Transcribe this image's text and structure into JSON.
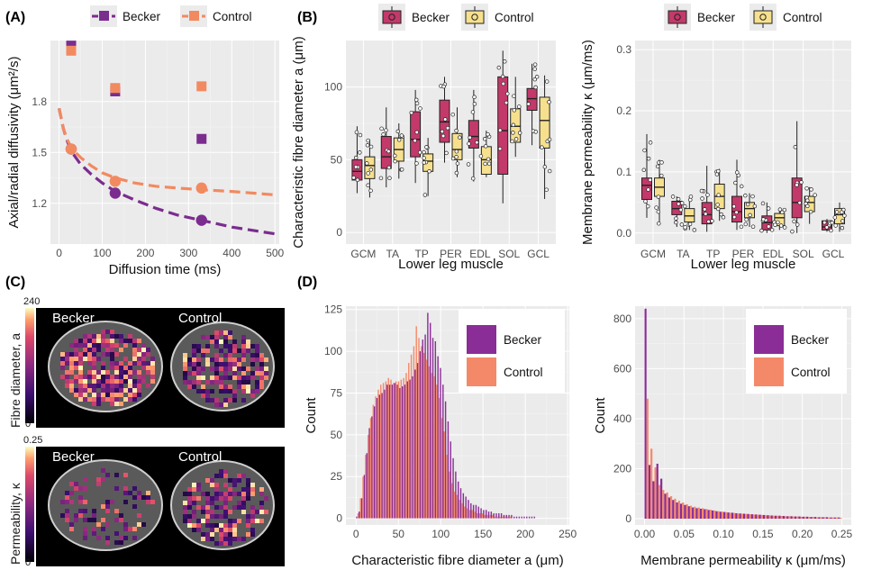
{
  "panel_labels": {
    "a": "(A)",
    "b": "(B)",
    "c": "(C)",
    "d": "(D)"
  },
  "colors": {
    "becker_a": "#7b2c8f",
    "control_a": "#f28a60",
    "becker_box": "#c3396a",
    "control_box": "#f6e08e",
    "becker_hist": "#8a2d96",
    "control_hist": "#f4896a",
    "panel_bg": "#ebebeb"
  },
  "panel_c": {
    "becker_label": "Becker",
    "control_label": "Control",
    "top_colorbar_label": "Fibre diameter, a",
    "top_colorbar_max": "240",
    "top_colorbar_min": "0",
    "bottom_colorbar_label": "Permeability, κ",
    "bottom_colorbar_max": "0.25",
    "bottom_colorbar_min": "0"
  },
  "chart_data": [
    {
      "id": "A",
      "type": "scatter",
      "xlabel": "Diffusion time (ms)",
      "ylabel": "Axial/radial diffusivity (μm²/s)",
      "xlim": [
        -20,
        510
      ],
      "ylim": [
        0.96,
        2.16
      ],
      "xticks": [
        0,
        100,
        200,
        300,
        400,
        500
      ],
      "yticks": [
        1.2,
        1.5,
        1.8
      ],
      "legend": [
        "Becker",
        "Control"
      ],
      "legend_position": "top",
      "series": [
        {
          "name": "Becker",
          "marker": "square",
          "x": [
            28,
            130,
            330
          ],
          "y": [
            2.13,
            1.86,
            1.58
          ]
        },
        {
          "name": "Control",
          "marker": "square",
          "x": [
            28,
            130,
            330
          ],
          "y": [
            2.1,
            1.88,
            1.89
          ]
        },
        {
          "name": "Becker",
          "marker": "circle",
          "x": [
            28,
            130,
            330
          ],
          "y": [
            1.52,
            1.26,
            1.1
          ]
        },
        {
          "name": "Control",
          "marker": "circle",
          "x": [
            28,
            130,
            330
          ],
          "y": [
            1.52,
            1.33,
            1.29
          ]
        }
      ],
      "fits": [
        {
          "name": "Becker",
          "x": [
            0,
            10,
            20,
            30,
            50,
            75,
            100,
            130,
            175,
            225,
            275,
            330,
            400,
            500
          ],
          "y": [
            1.76,
            1.64,
            1.56,
            1.5,
            1.43,
            1.37,
            1.32,
            1.27,
            1.22,
            1.17,
            1.13,
            1.1,
            1.06,
            1.02
          ]
        },
        {
          "name": "Control",
          "x": [
            0,
            10,
            20,
            30,
            50,
            75,
            100,
            130,
            175,
            225,
            275,
            330,
            400,
            500
          ],
          "y": [
            1.76,
            1.64,
            1.57,
            1.52,
            1.47,
            1.42,
            1.38,
            1.35,
            1.32,
            1.3,
            1.29,
            1.28,
            1.27,
            1.25
          ]
        }
      ]
    },
    {
      "id": "B-left",
      "type": "box",
      "xlabel": "Lower leg muscle",
      "ylabel": "Characteristic fibre diameter a (μm)",
      "ylim": [
        -8,
        132
      ],
      "yticks": [
        0,
        50,
        100
      ],
      "legend": [
        "Becker",
        "Control"
      ],
      "legend_position": "top",
      "categories": [
        "GCM",
        "TA",
        "TP",
        "PER",
        "EDL",
        "SOL",
        "GCL"
      ],
      "series": [
        {
          "name": "Becker",
          "boxes": [
            [
              27,
              36,
              42,
              50,
              73
            ],
            [
              31,
              44,
              52,
              66,
              86
            ],
            [
              34,
              52,
              64,
              83,
              98
            ],
            [
              48,
              62,
              76,
              91,
              107
            ],
            [
              35,
              58,
              66,
              77,
              98
            ],
            [
              20,
              40,
              70,
              107,
              125
            ],
            [
              60,
              84,
              92,
              99,
              116
            ]
          ]
        },
        {
          "name": "Control",
          "boxes": [
            [
              24,
              37,
              46,
              52,
              64
            ],
            [
              37,
              49,
              57,
              65,
              75
            ],
            [
              25,
              42,
              49,
              54,
              65
            ],
            [
              38,
              50,
              57,
              68,
              86
            ],
            [
              38,
              40,
              50,
              59,
              70
            ],
            [
              52,
              62,
              73,
              85,
              107
            ],
            [
              23,
              58,
              77,
              93,
              108
            ]
          ]
        }
      ]
    },
    {
      "id": "B-right",
      "type": "box",
      "xlabel": "Lower leg muscle",
      "ylabel": "Membrane permeability κ (μm/ms)",
      "ylim": [
        -0.018,
        0.315
      ],
      "yticks": [
        0.0,
        0.1,
        0.2,
        0.3
      ],
      "legend": [
        "Becker",
        "Control"
      ],
      "legend_position": "top",
      "categories": [
        "GCM",
        "TA",
        "TP",
        "PER",
        "EDL",
        "SOL",
        "GCL"
      ],
      "series": [
        {
          "name": "Becker",
          "boxes": [
            [
              0.025,
              0.055,
              0.078,
              0.09,
              0.162
            ],
            [
              0.01,
              0.03,
              0.04,
              0.052,
              0.06
            ],
            [
              0.002,
              0.015,
              0.03,
              0.05,
              0.11
            ],
            [
              0.005,
              0.018,
              0.035,
              0.06,
              0.12
            ],
            [
              0.0,
              0.005,
              0.017,
              0.028,
              0.05
            ],
            [
              0.0,
              0.025,
              0.05,
              0.09,
              0.183
            ],
            [
              0.002,
              0.005,
              0.01,
              0.02,
              0.023
            ]
          ]
        },
        {
          "name": "Control",
          "boxes": [
            [
              0.015,
              0.06,
              0.075,
              0.09,
              0.12
            ],
            [
              0.005,
              0.018,
              0.028,
              0.04,
              0.06
            ],
            [
              0.02,
              0.04,
              0.06,
              0.08,
              0.105
            ],
            [
              0.01,
              0.025,
              0.04,
              0.05,
              0.065
            ],
            [
              0.005,
              0.012,
              0.025,
              0.032,
              0.04
            ],
            [
              0.015,
              0.035,
              0.05,
              0.06,
              0.075
            ],
            [
              0.002,
              0.015,
              0.03,
              0.04,
              0.05
            ]
          ]
        }
      ]
    },
    {
      "id": "D-left",
      "type": "bar",
      "xlabel": "Characteristic fibre diameter a (μm)",
      "ylabel": "Count",
      "xlim": [
        -12,
        252
      ],
      "ylim": [
        -4,
        127
      ],
      "xticks": [
        0,
        50,
        100,
        150,
        200,
        250
      ],
      "yticks": [
        0,
        25,
        50,
        75,
        100,
        125
      ],
      "legend": [
        "Becker",
        "Control"
      ],
      "legend_position": "top-right",
      "bin_width": 3,
      "bin_start": 0,
      "series": [
        {
          "name": "Becker",
          "values": [
            1,
            4,
            12,
            26,
            39,
            54,
            61,
            67,
            72,
            74,
            75,
            77,
            80,
            80,
            80,
            81,
            80,
            78,
            79,
            80,
            82,
            83,
            85,
            89,
            93,
            100,
            107,
            110,
            123,
            117,
            108,
            106,
            97,
            90,
            80,
            70,
            58,
            46,
            36,
            28,
            22,
            18,
            15,
            13,
            11,
            9,
            8,
            8,
            7,
            6,
            5,
            5,
            4,
            4,
            3,
            3,
            3,
            3,
            2,
            2,
            2,
            2,
            1,
            1,
            1,
            1,
            1,
            1,
            1,
            1,
            1,
            0,
            0,
            0,
            0,
            0,
            0,
            0,
            0,
            0
          ]
        },
        {
          "name": "Control",
          "values": [
            3,
            12,
            25,
            38,
            50,
            60,
            68,
            73,
            77,
            80,
            81,
            82,
            84,
            83,
            81,
            82,
            82,
            83,
            84,
            87,
            93,
            98,
            103,
            115,
            108,
            103,
            99,
            95,
            91,
            87,
            85,
            80,
            72,
            60,
            52,
            38,
            28,
            21,
            16,
            14,
            11,
            9,
            7,
            6,
            5,
            5,
            4,
            3,
            3,
            3,
            2,
            2,
            2,
            2,
            1,
            1,
            1,
            1,
            1,
            1,
            1,
            0,
            0,
            0,
            0,
            0,
            0,
            0,
            0,
            0,
            0,
            0,
            0,
            0,
            0,
            0,
            0,
            0,
            0,
            0
          ]
        }
      ]
    },
    {
      "id": "D-right",
      "type": "bar",
      "xlabel": "Membrane permeability κ (μm/ms)",
      "ylabel": "Count",
      "xlim": [
        -0.012,
        0.262
      ],
      "ylim": [
        -25,
        850
      ],
      "xticks": [
        0.0,
        0.05,
        0.1,
        0.15,
        0.2,
        0.25
      ],
      "yticks": [
        0,
        200,
        400,
        600,
        800
      ],
      "legend": [
        "Becker",
        "Control"
      ],
      "legend_position": "top-right",
      "bin_width": 0.005,
      "bin_start": 0.0,
      "series": [
        {
          "name": "Becker",
          "values": [
            840,
            215,
            150,
            220,
            160,
            100,
            85,
            75,
            65,
            60,
            55,
            50,
            45,
            42,
            40,
            38,
            35,
            33,
            30,
            28,
            27,
            25,
            24,
            22,
            21,
            20,
            19,
            18,
            17,
            16,
            15,
            14,
            13,
            12,
            12,
            11,
            10,
            10,
            9,
            9,
            8,
            8,
            7,
            7,
            6,
            6,
            6,
            5,
            5,
            5
          ]
        },
        {
          "name": "Control",
          "values": [
            480,
            280,
            205,
            135,
            115,
            105,
            90,
            80,
            72,
            65,
            58,
            52,
            48,
            45,
            42,
            39,
            36,
            33,
            30,
            28,
            26,
            24,
            23,
            21,
            20,
            19,
            18,
            17,
            16,
            15,
            14,
            13,
            12,
            12,
            11,
            10,
            10,
            9,
            9,
            8,
            8,
            7,
            7,
            6,
            6,
            6,
            5,
            5,
            5,
            4
          ]
        }
      ]
    }
  ]
}
